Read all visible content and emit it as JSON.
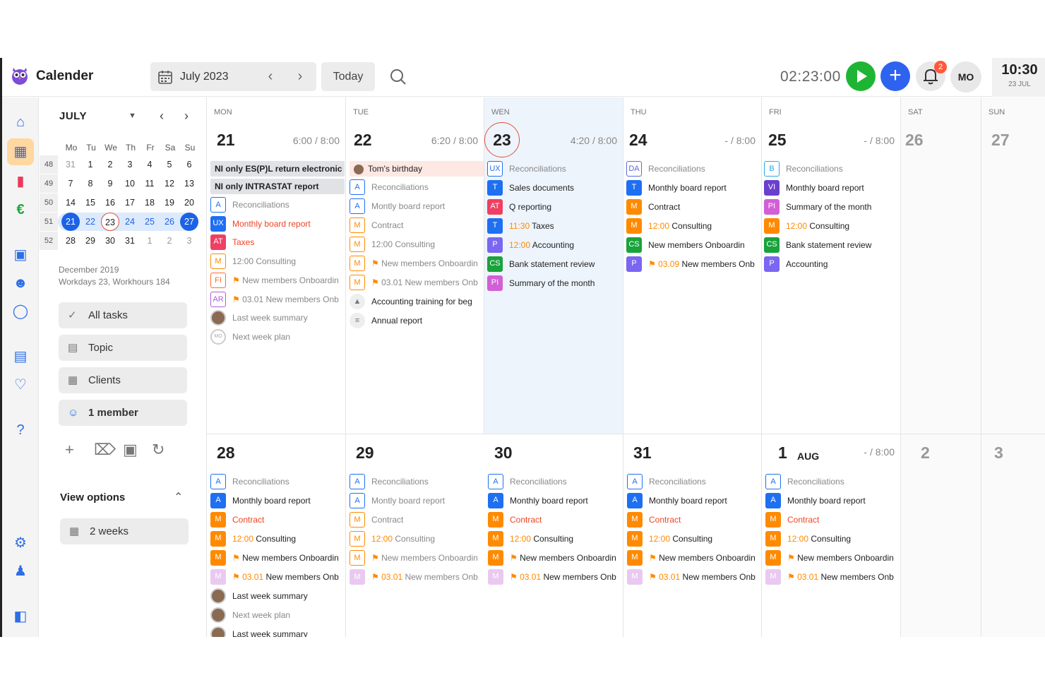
{
  "header": {
    "app_title": "Calender",
    "month_label": "July 2023",
    "today_label": "Today",
    "timer": "02:23:00",
    "notification_count": "2",
    "user_initials": "MO",
    "clock_time": "10:30",
    "clock_date": "23 JUL"
  },
  "mini_calendar": {
    "month": "JULY",
    "weekday_headers": [
      "Mo",
      "Tu",
      "We",
      "Th",
      "Fr",
      "Sa",
      "Su"
    ],
    "weeks": [
      {
        "num": "48",
        "days": [
          "31",
          "1",
          "2",
          "3",
          "4",
          "5",
          "6"
        ]
      },
      {
        "num": "49",
        "days": [
          "7",
          "8",
          "9",
          "10",
          "11",
          "12",
          "13"
        ]
      },
      {
        "num": "50",
        "days": [
          "14",
          "15",
          "16",
          "17",
          "18",
          "19",
          "20"
        ]
      },
      {
        "num": "51",
        "days": [
          "21",
          "22",
          "23",
          "24",
          "25",
          "26",
          "27"
        ]
      },
      {
        "num": "52",
        "days": [
          "28",
          "29",
          "30",
          "31",
          "1",
          "2",
          "3"
        ]
      }
    ]
  },
  "panel": {
    "stats_line1": "December 2019",
    "stats_line2": "Workdays 23, Workhours 184",
    "buttons": [
      "All tasks",
      "Topic",
      "Clients",
      "1 member"
    ],
    "view_options_label": "View options",
    "view_mode": "2 weeks"
  },
  "week1": {
    "days": [
      {
        "dow": "MON",
        "num": "21",
        "hours": "6:00 / 8:00"
      },
      {
        "dow": "TUE",
        "num": "22",
        "hours": "6:20 / 8:00"
      },
      {
        "dow": "WEN",
        "num": "23",
        "hours": "4:20 / 8:00"
      },
      {
        "dow": "THU",
        "num": "24",
        "hours": "- / 8:00"
      },
      {
        "dow": "FRI",
        "num": "25",
        "hours": "- / 8:00"
      },
      {
        "dow": "SAT",
        "num": "26"
      },
      {
        "dow": "SUN",
        "num": "27"
      }
    ],
    "mon_chips": [
      "NI only ES(P)L return electronic",
      "NI only INTRASTAT report"
    ],
    "tue_chip": "Tom's birthday",
    "mon": [
      {
        "b": "A",
        "t": "Reconciliations"
      },
      {
        "b": "UX",
        "t": "Monthly board report"
      },
      {
        "b": "AT",
        "t": "Taxes"
      },
      {
        "b": "M",
        "t": "12:00 Consulting"
      },
      {
        "b": "FI",
        "t": "New members Onboardin"
      },
      {
        "b": "AR",
        "t": "03.01 New members Onb"
      },
      {
        "t": "Last week summary"
      },
      {
        "t": "Next week plan",
        "mo": "MO"
      }
    ],
    "tue": [
      {
        "b": "A",
        "t": "Reconciliations"
      },
      {
        "b": "A",
        "t": "Montly board report"
      },
      {
        "b": "M",
        "t": "Contract"
      },
      {
        "b": "M",
        "t": "12:00 Consulting"
      },
      {
        "b": "M",
        "t": "New members Onboardin"
      },
      {
        "b": "M",
        "t": "03.01 New members Onb"
      },
      {
        "t": "Accounting training for beg"
      },
      {
        "t": "Annual report"
      }
    ],
    "wed": [
      {
        "b": "UX",
        "t": "Reconciliations"
      },
      {
        "b": "T",
        "t": "Sales documents"
      },
      {
        "b": "AT",
        "t": "Q reporting"
      },
      {
        "b": "T",
        "time": "11:30",
        "t": "Taxes"
      },
      {
        "b": "P",
        "time": "12:00",
        "t": "Accounting"
      },
      {
        "b": "CS",
        "t": "Bank statement review"
      },
      {
        "b": "PI",
        "t": "Summary of the month"
      }
    ],
    "thu": [
      {
        "b": "DA",
        "t": "Reconciliations"
      },
      {
        "b": "T",
        "t": "Monthly board report"
      },
      {
        "b": "M",
        "t": "Contract"
      },
      {
        "b": "M",
        "time": "12:00",
        "t": "Consulting"
      },
      {
        "b": "CS",
        "t": "New members Onboardin"
      },
      {
        "b": "P",
        "time": "03.09",
        "t": "New members Onb"
      }
    ],
    "fri": [
      {
        "b": "B",
        "t": "Reconciliations"
      },
      {
        "b": "VI",
        "t": "Monthly board report"
      },
      {
        "b": "PI",
        "t": "Summary of the month"
      },
      {
        "b": "M",
        "time": "12:00",
        "t": "Consulting"
      },
      {
        "b": "CS",
        "t": "Bank statement review"
      },
      {
        "b": "P",
        "t": "Accounting"
      }
    ]
  },
  "week2": {
    "days": [
      {
        "num": "28"
      },
      {
        "num": "29"
      },
      {
        "num": "30"
      },
      {
        "num": "31"
      },
      {
        "num": "1",
        "month": "AUG",
        "hours": "- / 8:00"
      },
      {
        "num": "2"
      },
      {
        "num": "3"
      }
    ],
    "std_events": [
      {
        "b": "A",
        "t": "Reconciliations"
      },
      {
        "b": "A",
        "t": "Montly board report"
      },
      {
        "b": "M",
        "t": "Contract"
      },
      {
        "b": "M",
        "time": "12:00",
        "t": "Consulting"
      },
      {
        "b": "M",
        "t": "New members Onboardin"
      },
      {
        "b": "M",
        "time": "03.01",
        "t": "New members Onb"
      }
    ],
    "std_events_alt_label": "Monthly board report",
    "mon_extra": [
      "Last week summary",
      "Next week plan",
      "Last week summary"
    ]
  }
}
